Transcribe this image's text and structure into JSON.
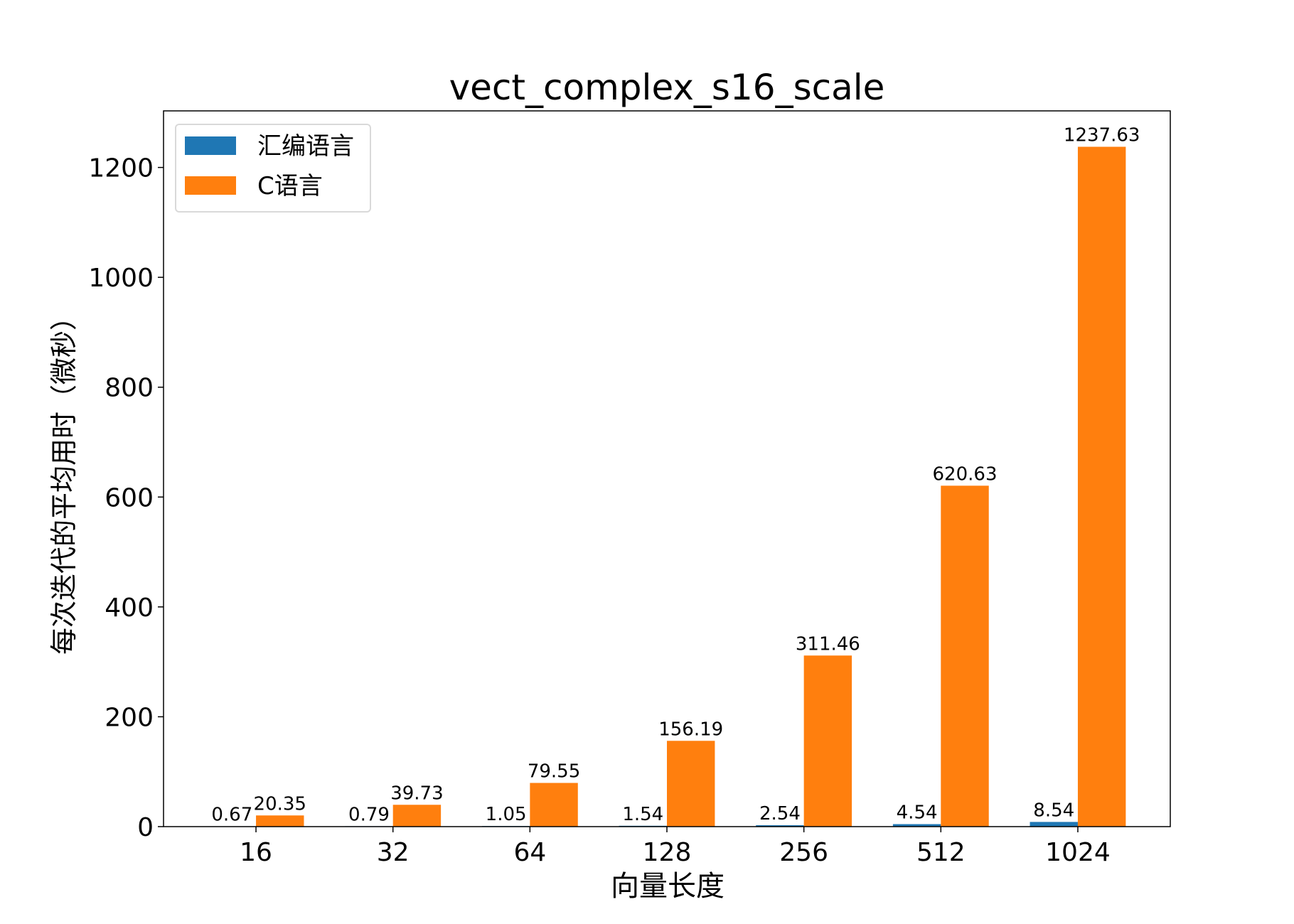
{
  "chart_data": {
    "type": "bar",
    "title": "vect_complex_s16_scale",
    "xlabel": "向量长度",
    "ylabel": "每次迭代的平均用时（微秒）",
    "categories": [
      "16",
      "32",
      "64",
      "128",
      "256",
      "512",
      "1024"
    ],
    "series": [
      {
        "name": "汇编语言",
        "color": "#1f77b4",
        "values": [
          0.67,
          0.79,
          1.05,
          1.54,
          2.54,
          4.54,
          8.54
        ]
      },
      {
        "name": "C语言",
        "color": "#ff7f0e",
        "values": [
          20.35,
          39.73,
          79.55,
          156.19,
          311.46,
          620.63,
          1237.63
        ]
      }
    ],
    "yticks": [
      0,
      200,
      400,
      600,
      800,
      1000,
      1200
    ],
    "ylim": [
      0,
      1303
    ],
    "grid": false,
    "legend_placement": "top-left",
    "data_labels": true
  }
}
